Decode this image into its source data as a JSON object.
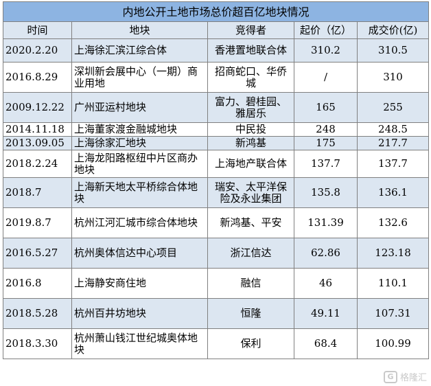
{
  "title": "内地公开土地市场总价超百亿地块情况",
  "headers": {
    "time": "时间",
    "parcel": "地块",
    "winner": "竞得者",
    "start": "起价（亿）",
    "final": "成交价(亿)"
  },
  "rows": [
    {
      "time": "2020.2.20",
      "parcel": "上海徐汇滨江综合体",
      "winner": "香港置地联合体",
      "start": "310.2",
      "final": "310.5"
    },
    {
      "time": "2016.8.29",
      "parcel": "深圳新会展中心（一期）商业用地",
      "winner": "招商蛇口、华侨城",
      "start": "/",
      "final": "310"
    },
    {
      "time": "2009.12.22",
      "parcel": "广州亚运村地块",
      "winner": "富力、碧桂园、雅居乐",
      "start": "165",
      "final": "255"
    },
    {
      "time": "2014.11.18",
      "parcel": "上海董家渡金融城地块",
      "winner": "中民投",
      "start": "248",
      "final": "248.5"
    },
    {
      "time": "2013.09.05",
      "parcel": "上海徐家汇地块",
      "winner": "新鸿基",
      "start": "175",
      "final": "217.7"
    },
    {
      "time": "2018.2.24",
      "parcel": "上海龙阳路枢纽中片区商办地块",
      "winner": "上海地产联合体",
      "start": "137.7",
      "final": "137.7"
    },
    {
      "time": "2018.7",
      "parcel": "上海新天地太平桥综合体地块",
      "winner": "瑞安、太平洋保险及永业集团",
      "start": "135.8",
      "final": "136.1"
    },
    {
      "time": "2019.8.7",
      "parcel": "杭州江河汇城市综合体地块",
      "winner": "新鸿基、平安",
      "start": "131.39",
      "final": "132.6"
    },
    {
      "time": "2016.5.27",
      "parcel": "杭州奥体信达中心项目",
      "winner": "浙江信达",
      "start": "62.86",
      "final": "123.18"
    },
    {
      "time": "2016.8",
      "parcel": "上海静安商住地",
      "winner": "融信",
      "start": "46",
      "final": "110.1"
    },
    {
      "time": "2018.5.28",
      "parcel": "杭州百井坊地块",
      "winner": "恒隆",
      "start": "49.11",
      "final": "107.31"
    },
    {
      "time": "2018.3.30",
      "parcel": "杭州萧山钱江世纪城奥体地块",
      "winner": "保利",
      "start": "68.4",
      "final": "100.99"
    }
  ],
  "watermark": "格隆汇",
  "colors": {
    "title_bg": "#8db4e2",
    "shade_bg": "#dce6f1",
    "border": "#7f7f7f"
  }
}
